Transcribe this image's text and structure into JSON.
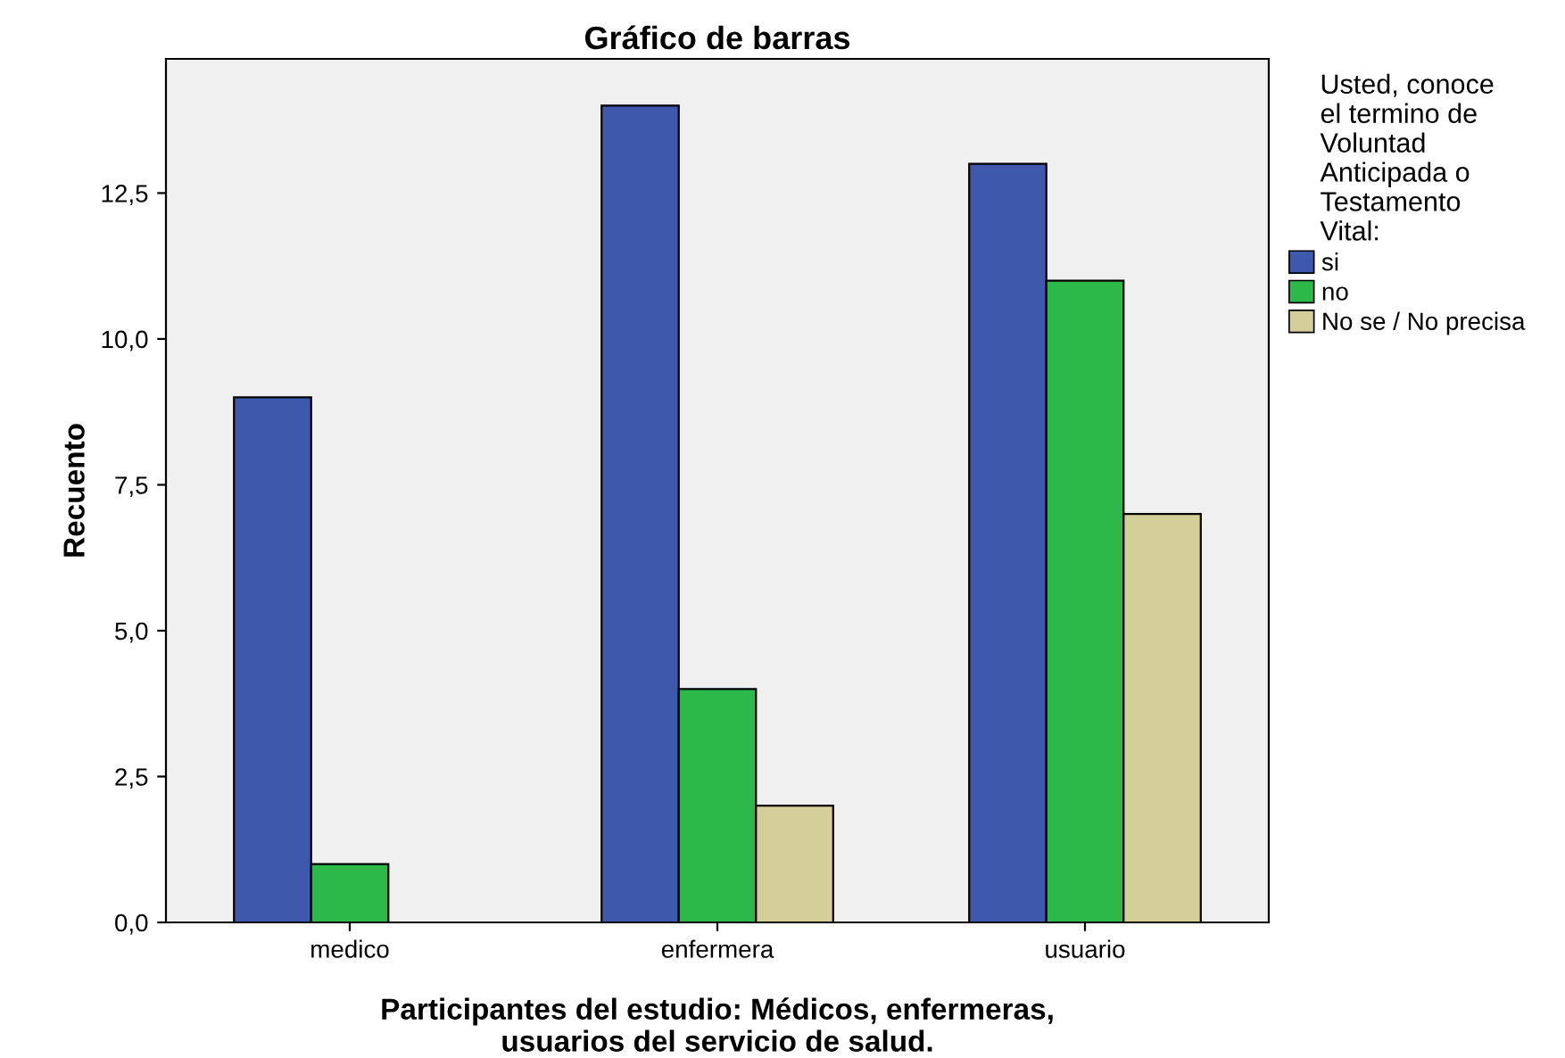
{
  "chart_data": {
    "type": "bar",
    "title": "Gráfico de barras",
    "xlabel": "Participantes del estudio: Médicos, enfermeras,\nusuarios del servicio de salud.",
    "ylabel": "Recuento",
    "legend_title": "Usted, conoce\nel termino de\nVoluntad\nAnticipada o\nTestamento\nVital:",
    "categories": [
      "medico",
      "enfermera",
      "usuario"
    ],
    "series": [
      {
        "name": "si",
        "color": "#3e58ac",
        "values": [
          9,
          14,
          13
        ]
      },
      {
        "name": "no",
        "color": "#2db84a",
        "values": [
          1,
          4,
          11
        ]
      },
      {
        "name": "No se / No precisa",
        "color": "#d4ce99",
        "values": [
          null,
          2,
          7
        ]
      }
    ],
    "ylim": [
      0,
      14.8
    ],
    "yticks": [
      {
        "value": 0,
        "label": "0,0"
      },
      {
        "value": 2.5,
        "label": "2,5"
      },
      {
        "value": 5,
        "label": "5,0"
      },
      {
        "value": 7.5,
        "label": "7,5"
      },
      {
        "value": 10,
        "label": "10,0"
      },
      {
        "value": 12.5,
        "label": "12,5"
      }
    ],
    "grid": false,
    "legend": "right"
  }
}
